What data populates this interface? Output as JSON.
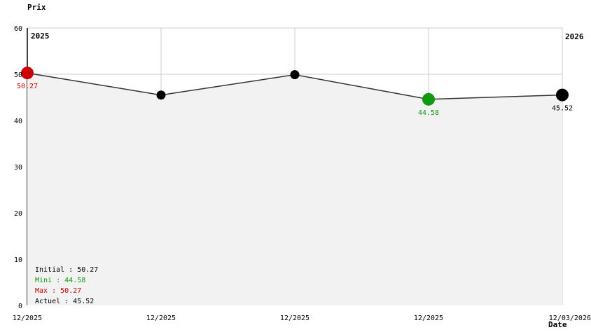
{
  "chart_data": {
    "type": "line",
    "ylabel": "Prix",
    "xlabel": "Date",
    "ylim": [
      0,
      60
    ],
    "yticks": [
      0,
      10,
      20,
      30,
      40,
      50,
      60
    ],
    "grid": true,
    "legend_position": "bottom-left",
    "period_labels": [
      {
        "text": "2025",
        "side": "left"
      },
      {
        "text": "2026",
        "side": "right"
      }
    ],
    "categories": [
      "12/2025",
      "12/2025",
      "12/2025",
      "12/2025",
      "12/03/2026"
    ],
    "series": [
      {
        "name": "Prix",
        "values": [
          50.27,
          45.5,
          49.9,
          44.58,
          45.52
        ]
      }
    ],
    "points": [
      {
        "x_label": "12/2025",
        "value": 50.27,
        "dot_color": "#cc0000",
        "dot_size": "large",
        "label": "50.27",
        "label_color": "#cc0000"
      },
      {
        "x_label": "12/2025",
        "value": 45.5,
        "dot_color": "#000000",
        "dot_size": "small",
        "label": "",
        "label_color": ""
      },
      {
        "x_label": "12/2025",
        "value": 49.9,
        "dot_color": "#000000",
        "dot_size": "small",
        "label": "",
        "label_color": ""
      },
      {
        "x_label": "12/2025",
        "value": 44.58,
        "dot_color": "#119911",
        "dot_size": "large",
        "label": "44.58",
        "label_color": "#119911"
      },
      {
        "x_label": "12/03/2026",
        "value": 45.52,
        "dot_color": "#000000",
        "dot_size": "large",
        "label": "45.52",
        "label_color": "#000000"
      }
    ],
    "legend": [
      {
        "text": "Initial : 50.27",
        "color": "#000000"
      },
      {
        "text": "Mini : 44.58",
        "color": "#119911"
      },
      {
        "text": "Max : 50.27",
        "color": "#cc0000"
      },
      {
        "text": "Actuel : 45.52",
        "color": "#000000"
      }
    ],
    "colors": {
      "line": "#333333",
      "grid": "#cccccc",
      "fill": "#f2f2f2",
      "axis": "#000000",
      "tick_text": "#000000",
      "background": "#ffffff"
    }
  }
}
